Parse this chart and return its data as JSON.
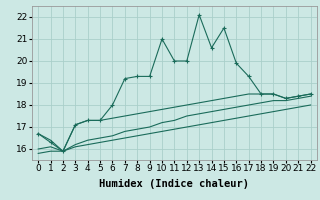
{
  "bg_color": "#cce8e4",
  "grid_color": "#aacfca",
  "line_color": "#1a6b5a",
  "xlabel": "Humidex (Indice chaleur)",
  "xlabel_fontsize": 7.5,
  "tick_fontsize": 6.5,
  "ylim": [
    15.5,
    22.5
  ],
  "xlim": [
    -0.5,
    22.5
  ],
  "yticks": [
    16,
    17,
    18,
    19,
    20,
    21,
    22
  ],
  "xticks": [
    0,
    1,
    2,
    3,
    4,
    5,
    6,
    7,
    8,
    9,
    10,
    11,
    12,
    13,
    14,
    15,
    16,
    17,
    18,
    19,
    20,
    21,
    22
  ],
  "series1_x": [
    0,
    1,
    2,
    3,
    4,
    5,
    6,
    7,
    8,
    9,
    10,
    11,
    12,
    13,
    14,
    15,
    16,
    17,
    18,
    19,
    20,
    21,
    22
  ],
  "series1_y": [
    16.7,
    16.3,
    15.9,
    17.1,
    17.3,
    17.3,
    18.0,
    19.2,
    19.3,
    19.3,
    21.0,
    20.0,
    20.0,
    22.1,
    20.6,
    21.5,
    19.9,
    19.3,
    18.5,
    18.5,
    18.3,
    18.4,
    18.5
  ],
  "series2_x": [
    0,
    1,
    2,
    3,
    4,
    5,
    6,
    7,
    8,
    9,
    10,
    11,
    12,
    13,
    14,
    15,
    16,
    17,
    18,
    19,
    20,
    21,
    22
  ],
  "series2_y": [
    16.7,
    16.4,
    15.9,
    17.1,
    17.3,
    17.3,
    17.4,
    17.5,
    17.6,
    17.7,
    17.8,
    17.9,
    18.0,
    18.1,
    18.2,
    18.3,
    18.4,
    18.5,
    18.5,
    18.5,
    18.3,
    18.4,
    18.5
  ],
  "series3_x": [
    0,
    1,
    2,
    3,
    4,
    5,
    6,
    7,
    8,
    9,
    10,
    11,
    12,
    13,
    14,
    15,
    16,
    17,
    18,
    19,
    20,
    21,
    22
  ],
  "series3_y": [
    16.0,
    16.1,
    15.9,
    16.2,
    16.4,
    16.5,
    16.6,
    16.8,
    16.9,
    17.0,
    17.2,
    17.3,
    17.5,
    17.6,
    17.7,
    17.8,
    17.9,
    18.0,
    18.1,
    18.2,
    18.2,
    18.3,
    18.4
  ],
  "series4_x": [
    0,
    1,
    2,
    3,
    4,
    5,
    6,
    7,
    8,
    9,
    10,
    11,
    12,
    13,
    14,
    15,
    16,
    17,
    18,
    19,
    20,
    21,
    22
  ],
  "series4_y": [
    15.8,
    15.9,
    15.9,
    16.1,
    16.2,
    16.3,
    16.4,
    16.5,
    16.6,
    16.7,
    16.8,
    16.9,
    17.0,
    17.1,
    17.2,
    17.3,
    17.4,
    17.5,
    17.6,
    17.7,
    17.8,
    17.9,
    18.0
  ]
}
